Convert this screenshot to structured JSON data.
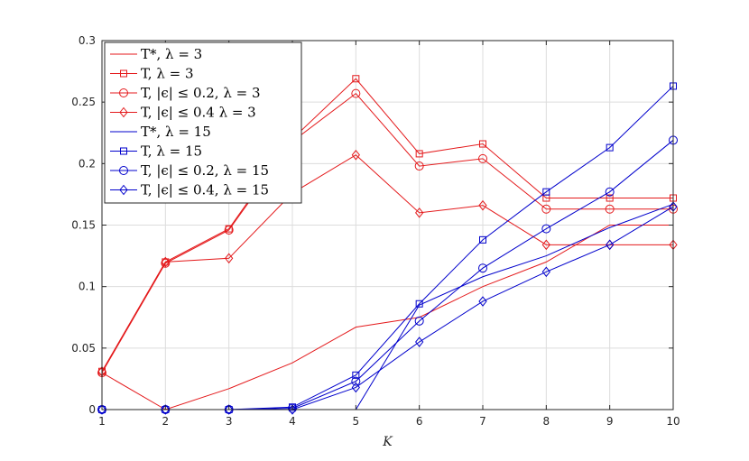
{
  "chart_data": {
    "type": "line",
    "xlabel": "K",
    "ylabel": "",
    "title": "",
    "xlim": [
      1,
      10
    ],
    "ylim": [
      0,
      0.3
    ],
    "xticks": [
      "1",
      "2",
      "3",
      "4",
      "5",
      "6",
      "7",
      "8",
      "9",
      "10"
    ],
    "yticks": [
      "0",
      "0.05",
      "0.1",
      "0.15",
      "0.2",
      "0.25",
      "0.3"
    ],
    "grid": true,
    "legend_position": "top-left",
    "x": [
      1,
      2,
      3,
      4,
      5,
      6,
      7,
      8,
      9,
      10
    ],
    "series": [
      {
        "name": "T*, λ = 3",
        "color": "#e41a1c",
        "marker": "none",
        "values": [
          0.03,
          0.0,
          0.017,
          0.038,
          0.067,
          0.075,
          0.1,
          0.12,
          0.15,
          0.15
        ]
      },
      {
        "name": "T, λ = 3",
        "color": "#e41a1c",
        "marker": "square",
        "values": [
          0.031,
          0.12,
          0.147,
          0.22,
          0.269,
          0.208,
          0.216,
          0.172,
          0.172,
          0.172
        ]
      },
      {
        "name": "T, |ϵ| ≤ 0.2, λ = 3",
        "color": "#e41a1c",
        "marker": "circle",
        "values": [
          0.03,
          0.119,
          0.146,
          0.218,
          0.257,
          0.198,
          0.204,
          0.163,
          0.163,
          0.163
        ]
      },
      {
        "name": "T, |ϵ| ≤ 0.4 λ = 3",
        "color": "#e41a1c",
        "marker": "diamond",
        "values": [
          0.031,
          0.12,
          0.123,
          0.176,
          0.207,
          0.16,
          0.166,
          0.134,
          0.134,
          0.134
        ]
      },
      {
        "name": "T*, λ = 15",
        "color": "#0000cc",
        "marker": "none",
        "values": [
          0.0,
          0.0,
          0.0,
          0.0,
          0.0,
          0.085,
          0.108,
          0.125,
          0.148,
          0.167
        ]
      },
      {
        "name": "T, λ = 15",
        "color": "#0000cc",
        "marker": "square",
        "values": [
          0.0,
          0.0,
          0.0,
          0.002,
          0.028,
          0.086,
          0.138,
          0.177,
          0.213,
          0.263
        ]
      },
      {
        "name": "T, |ϵ| ≤ 0.2, λ = 15",
        "color": "#0000cc",
        "marker": "circle",
        "values": [
          0.0,
          0.0,
          0.0,
          0.001,
          0.023,
          0.072,
          0.115,
          0.147,
          0.177,
          0.219
        ]
      },
      {
        "name": "T, |ϵ| ≤ 0.4, λ = 15",
        "color": "#0000cc",
        "marker": "diamond",
        "values": [
          0.0,
          0.0,
          0.0,
          0.0,
          0.018,
          0.055,
          0.088,
          0.112,
          0.134,
          0.165
        ]
      }
    ]
  }
}
